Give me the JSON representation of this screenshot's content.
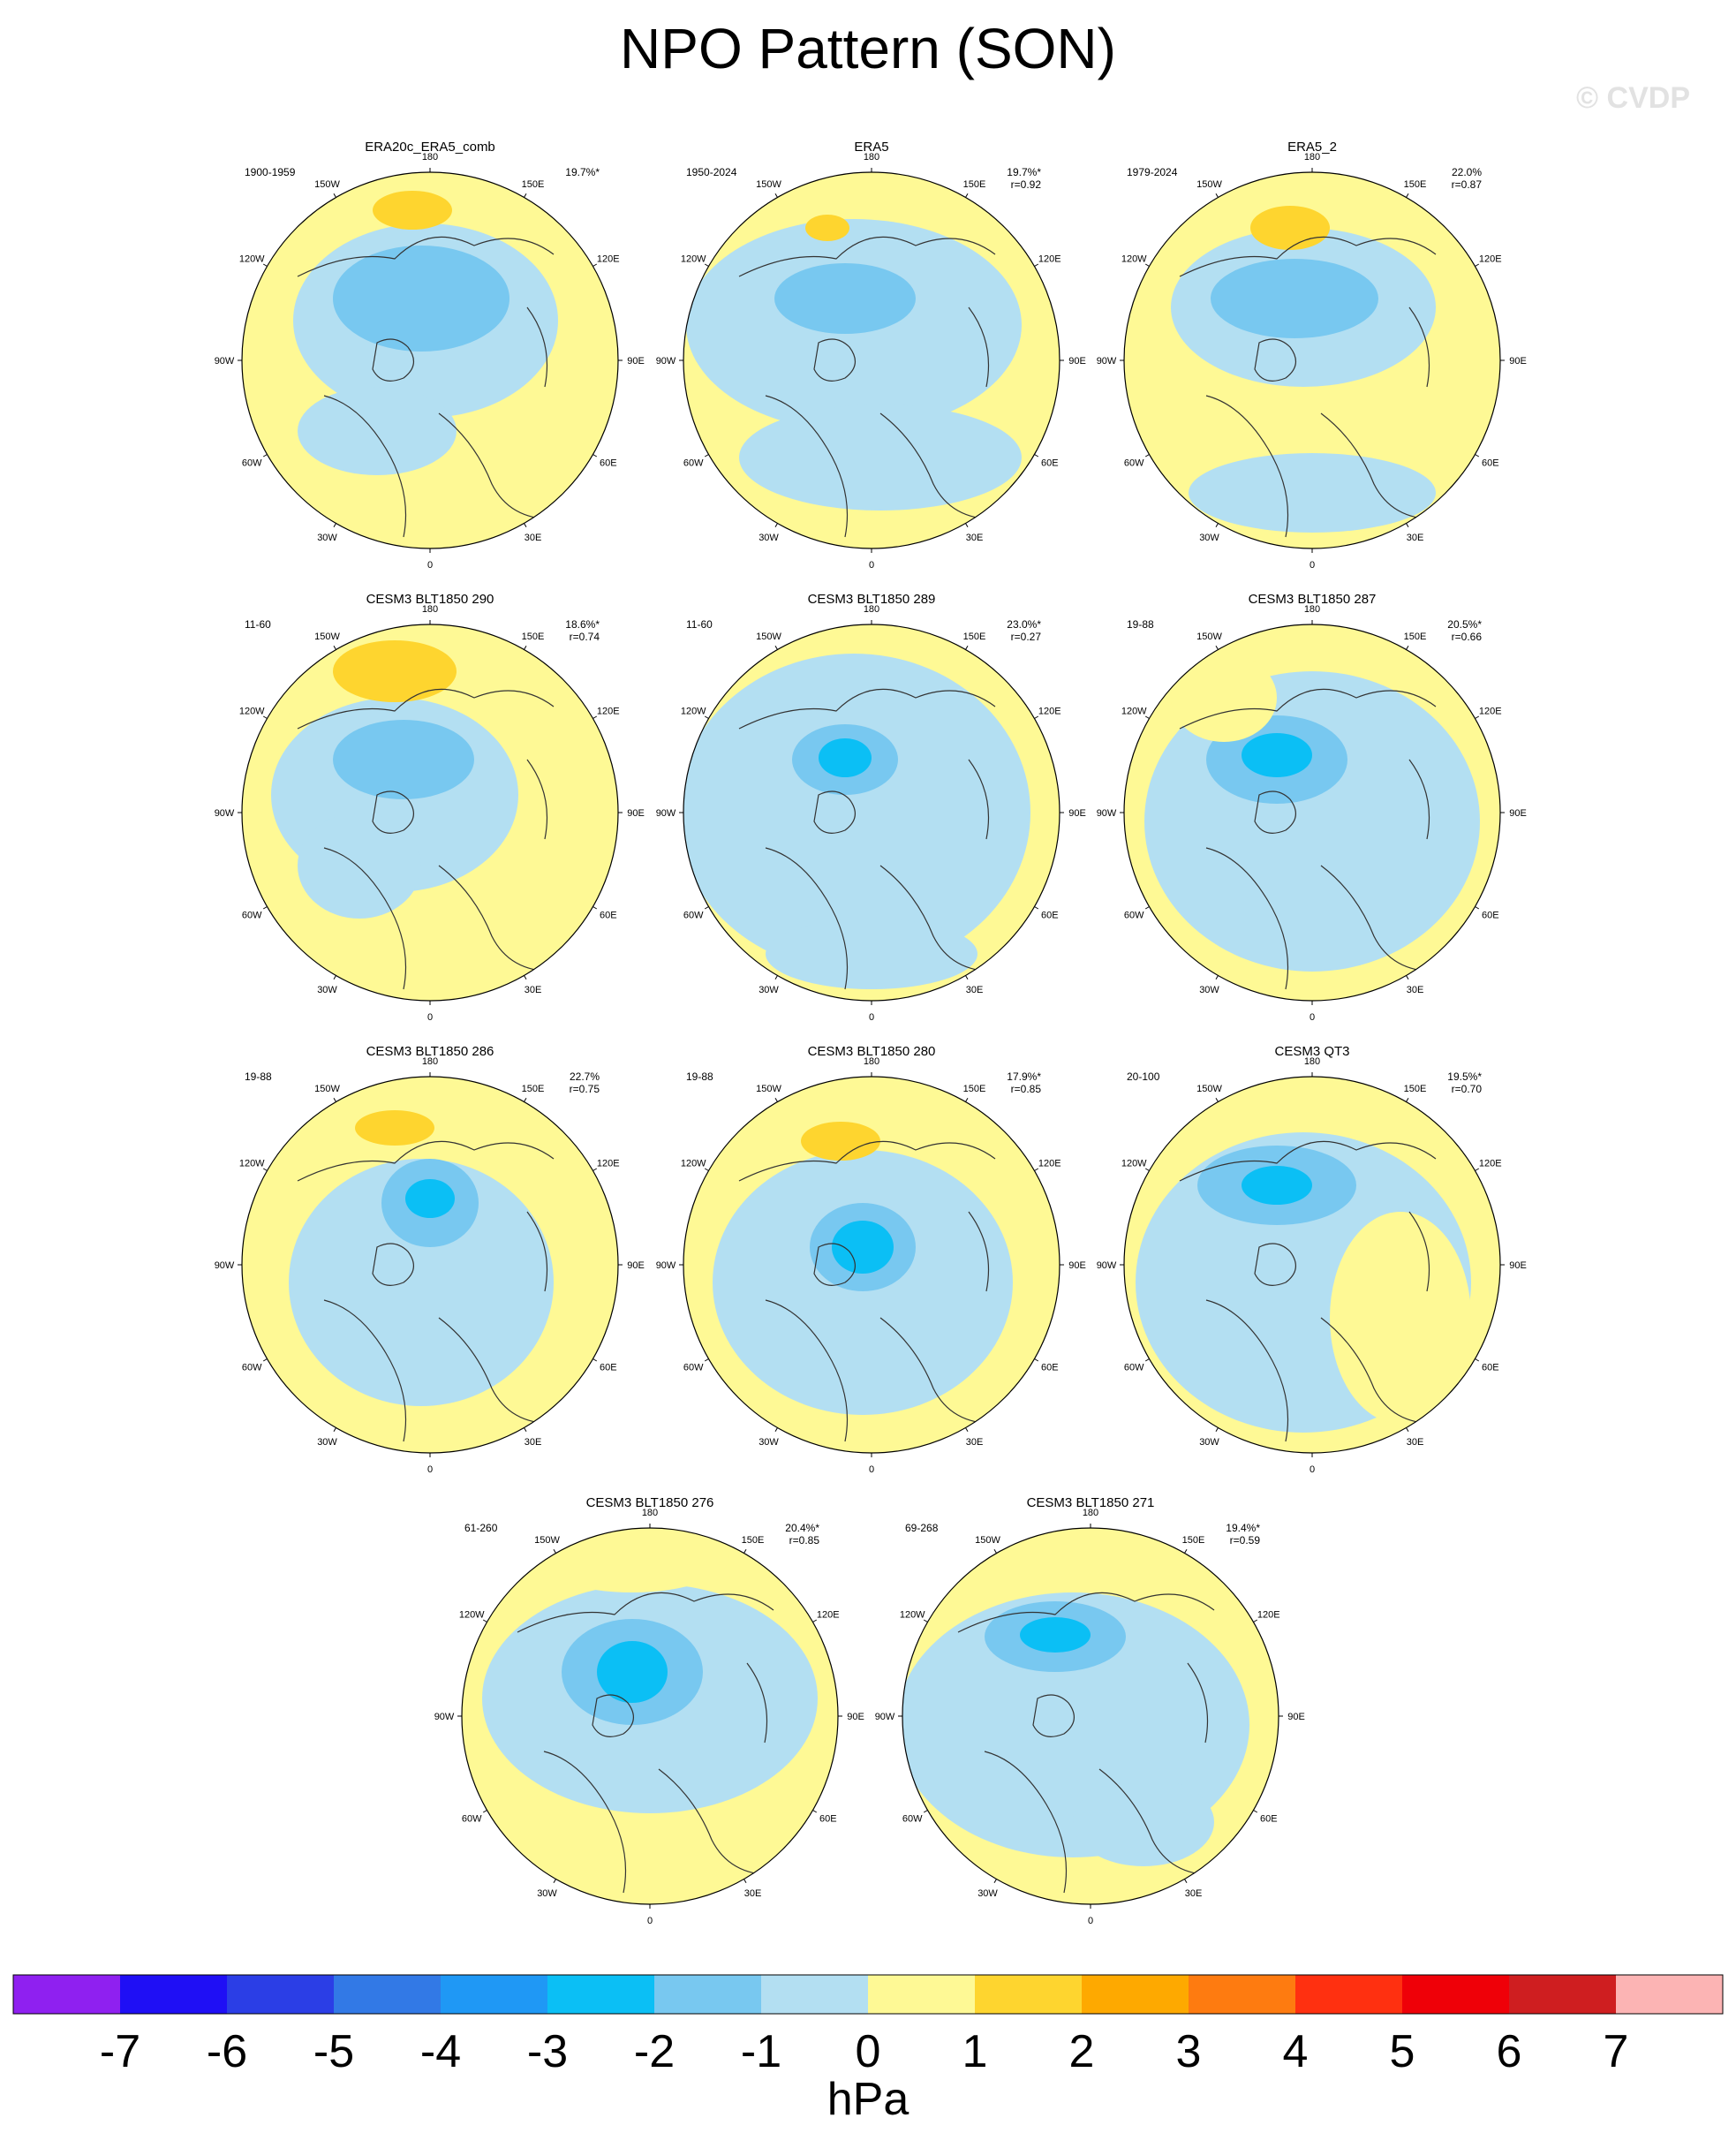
{
  "title": "NPO Pattern (SON)",
  "watermark": "© CVDP",
  "longitude_labels": [
    "180",
    "150E",
    "120E",
    "90E",
    "60E",
    "30E",
    "0",
    "30W",
    "60W",
    "90W",
    "120W",
    "150W"
  ],
  "panels": [
    {
      "name": "ERA20c_ERA5_comb",
      "period": "1900-1959",
      "pct": "19.7%*",
      "r": ""
    },
    {
      "name": "ERA5",
      "period": "1950-2024",
      "pct": "19.7%*",
      "r": "r=0.92"
    },
    {
      "name": "ERA5_2",
      "period": "1979-2024",
      "pct": "22.0%",
      "r": "r=0.87"
    },
    {
      "name": "CESM3 BLT1850 290",
      "period": "11-60",
      "pct": "18.6%*",
      "r": "r=0.74"
    },
    {
      "name": "CESM3 BLT1850 289",
      "period": "11-60",
      "pct": "23.0%*",
      "r": "r=0.27"
    },
    {
      "name": "CESM3 BLT1850 287",
      "period": "19-88",
      "pct": "20.5%*",
      "r": "r=0.66"
    },
    {
      "name": "CESM3 BLT1850 286",
      "period": "19-88",
      "pct": "22.7%",
      "r": "r=0.75"
    },
    {
      "name": "CESM3 BLT1850 280",
      "period": "19-88",
      "pct": "17.9%*",
      "r": "r=0.85"
    },
    {
      "name": "CESM3 QT3",
      "period": "20-100",
      "pct": "19.5%*",
      "r": "r=0.70"
    },
    {
      "name": "CESM3 BLT1850 276",
      "period": "61-260",
      "pct": "20.4%*",
      "r": "r=0.85"
    },
    {
      "name": "CESM3 BLT1850 271",
      "period": "69-268",
      "pct": "19.4%*",
      "r": "r=0.59"
    }
  ],
  "colorbar": {
    "levels": [
      "-7",
      "-6",
      "-5",
      "-4",
      "-3",
      "-2",
      "-1",
      "0",
      "1",
      "2",
      "3",
      "4",
      "5",
      "6",
      "7"
    ],
    "colors": [
      "#8f20f0",
      "#1f0ff5",
      "#2b3ee6",
      "#3279e6",
      "#1f98f5",
      "#0bbff5",
      "#78c8f0",
      "#b3dff2",
      "#fef995",
      "#fed52f",
      "#fea900",
      "#fe7b10",
      "#ff3010",
      "#ef0008",
      "#cf1e20",
      "#fcb4b4"
    ],
    "unit": "hPa"
  },
  "palette": {
    "land_outline": "#333333",
    "yellow": "#fef995",
    "light_blue": "#b3dff2",
    "mid_blue": "#78c8f0",
    "blue": "#0bbff5",
    "deep_blue": "#1f98f5",
    "gold": "#fed52f"
  }
}
